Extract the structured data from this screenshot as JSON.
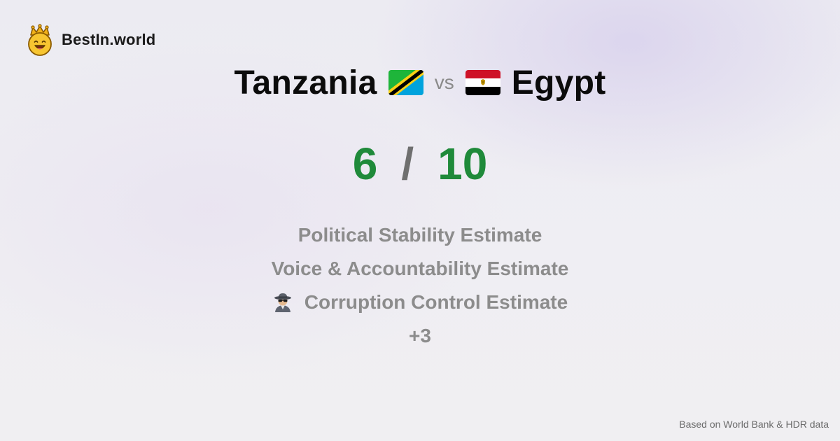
{
  "brand": {
    "name": "BestIn.world",
    "logo_icon": "crown-smiley-icon"
  },
  "comparison": {
    "left_country": "Tanzania",
    "left_flag_icon": "tanzania-flag-icon",
    "vs_label": "vs",
    "right_country": "Egypt",
    "right_flag_icon": "egypt-flag-icon"
  },
  "score": {
    "left": "6",
    "separator": "/",
    "right": "10"
  },
  "criteria": {
    "items": [
      {
        "label": "Political Stability Estimate"
      },
      {
        "label": "Voice & Accountability Estimate"
      },
      {
        "label": "Corruption Control Estimate",
        "icon": "detective-icon"
      }
    ],
    "more_label": "+3"
  },
  "footer": {
    "source": "Based on World Bank & HDR data"
  },
  "colors": {
    "score_green": "#1f8a3a",
    "criteria_gray": "#8c8c8c",
    "title_black": "#0b0b0b"
  }
}
